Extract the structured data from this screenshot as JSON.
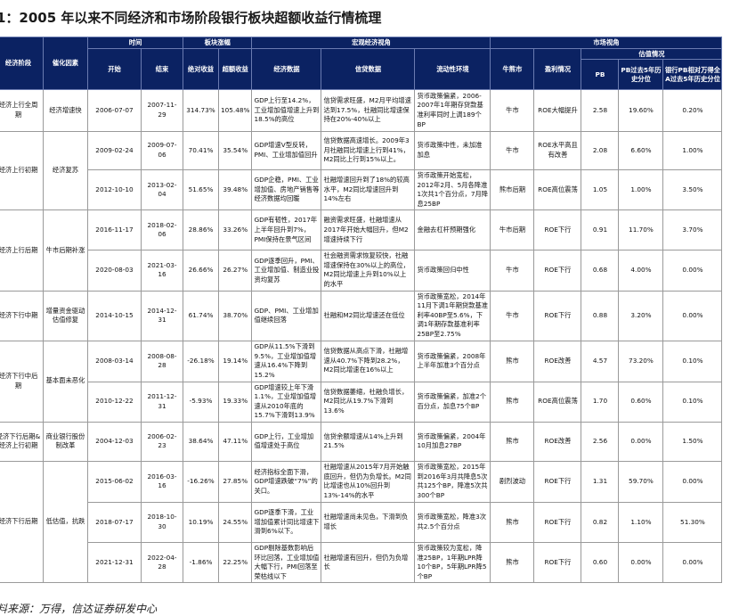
{
  "title": "1：2005 年以来不同经济和市场阶段银行板块超额收益行情梳理",
  "header": {
    "stage": "经济阶段",
    "catalyst": "催化因素",
    "time": "时间",
    "start": "开始",
    "end": "结束",
    "sector_change": "板块涨幅",
    "abs_return": "绝对收益",
    "excess_return": "超额收益",
    "macro": "宏观经济视角",
    "econ_data": "经济数据",
    "credit_data": "信贷数据",
    "liquidity": "流动性环境",
    "market": "市场视角",
    "bull_bear": "牛熊市",
    "profit": "盈利情况",
    "valuation": "估值情况",
    "pb": "PB",
    "pb_pct": "PB过去5年历史分位",
    "rel_pb_pct": "银行PB相对万得全A过去5年历史分位"
  },
  "groups": [
    {
      "stage": "经济上行全周期",
      "catalyst": "经济增速快",
      "rows": [
        {
          "start": "2006-07-07",
          "end": "2007-11-29",
          "abs": "314.73%",
          "excess": "105.48%",
          "econ": "GDP上行至14.2%，工业增加值增速上升到18.5%的高位",
          "credit": "信贷需求旺盛，M2月平均增速达到17.5%，社融同比增速保持在20%-40%以上",
          "liq": "货币政策偏紧，2006-2007年1年期存贷款基准利率同时上调189个BP",
          "bb": "牛市",
          "profit": "ROE大幅提升",
          "pb": "2.58",
          "pbp": "19.60%",
          "rpb": "0.20%"
        }
      ]
    },
    {
      "stage": "经济上行初期",
      "catalyst": "经济复苏",
      "rows": [
        {
          "start": "2009-02-24",
          "end": "2009-07-06",
          "abs": "70.41%",
          "excess": "35.54%",
          "econ": "GDP增速V型反转，PMI、工业增加值回升",
          "credit": "信贷数据高速增长。2009年3月社融同比增速上行到41%，M2同比上行到15%以上。",
          "liq": "货币政策中性，未加准加息",
          "bb": "牛市",
          "profit": "ROE水平高且有改善",
          "pb": "2.08",
          "pbp": "6.60%",
          "rpb": "1.00%"
        },
        {
          "start": "2012-10-10",
          "end": "2013-02-04",
          "abs": "51.65%",
          "excess": "39.48%",
          "econ": "GDP企稳，PMI、工业增加值、房地产销售等经济数据均回暖",
          "credit": "社融增速回升到了18%的较高水平，M2同比增速回升到14%左右",
          "liq": "货币政策开始宽松，2012年2月、5月各降准1次共1个百分点，7月降息25BP",
          "bb": "熊市后期",
          "profit": "ROE高位震荡",
          "pb": "1.05",
          "pbp": "1.00%",
          "rpb": "3.50%"
        }
      ]
    },
    {
      "stage": "经济上行后期",
      "catalyst": "牛市后期补涨",
      "rows": [
        {
          "start": "2016-11-17",
          "end": "2018-02-06",
          "abs": "28.86%",
          "excess": "33.26%",
          "econ": "GDP有韧性，2017年上半年回升到7%，PMI保持在景气区间",
          "credit": "融资需求旺盛，社融增速从2017年开始大幅回升，但M2增速持续下行",
          "liq": "金融去杠杆预期强化",
          "bb": "牛市后期",
          "profit": "ROE下行",
          "pb": "0.91",
          "pbp": "11.70%",
          "rpb": "3.70%"
        },
        {
          "start": "2020-08-03",
          "end": "2021-03-16",
          "abs": "26.66%",
          "excess": "26.27%",
          "econ": "GDP逐季回升，PMI、工业增加值、制造业投资均复苏",
          "credit": "社会融资需求恢复较快，社融增速保持在30%以上的高位，M2同比增速上升到10%以上的水平",
          "liq": "货币政策回归中性",
          "bb": "牛市",
          "profit": "ROE下行",
          "pb": "0.68",
          "pbp": "4.00%",
          "rpb": "0.00%"
        }
      ]
    },
    {
      "stage": "经济下行中期",
      "catalyst": "增量资金驱动估值修复",
      "rows": [
        {
          "start": "2014-10-15",
          "end": "2014-12-31",
          "abs": "61.74%",
          "excess": "38.70%",
          "econ": "GDP、PMI、工业增加值继续回落",
          "credit": "社融和M2同比增速还在低位",
          "liq": "货币政策宽松，2014年11月下调1年期贷款基准利率40BP至5.6%，下调1年期存款基准利率25BP至2.75%",
          "bb": "牛市",
          "profit": "ROE下行",
          "pb": "0.88",
          "pbp": "3.20%",
          "rpb": "0.00%"
        }
      ]
    },
    {
      "stage": "经济下行中后期",
      "catalyst": "基本面未恶化",
      "rows": [
        {
          "start": "2008-03-14",
          "end": "2008-08-28",
          "abs": "-26.18%",
          "excess": "19.14%",
          "econ": "GDP从11.5%下滑到9.5%，工业增加值增速从16.4%下降到15.2%",
          "credit": "信贷数据从高点下滑，社融增速从40.7%下降到28.2%，M2同比增速在16%以上",
          "liq": "货币政策偏紧，2008年上半年加准3个百分点",
          "bb": "熊市",
          "profit": "ROE改善",
          "pb": "4.57",
          "pbp": "73.20%",
          "rpb": "0.10%"
        },
        {
          "start": "2010-12-22",
          "end": "2011-12-31",
          "abs": "-5.93%",
          "excess": "19.33%",
          "econ": "GDP增速较上年下滑1.1%，工业增加值增速从2010年底的15.7%下滑到13.9%",
          "credit": "信贷数据萎缩，社融负增长，M2同比从19.7%下滑到13.6%",
          "liq": "货币政策偏紧，加准2个百分点，加息75个BP",
          "bb": "熊市",
          "profit": "ROE高位震荡",
          "pb": "1.70",
          "pbp": "0.60%",
          "rpb": "0.10%"
        }
      ]
    },
    {
      "stage": "经济下行后期&经济上行初期",
      "catalyst": "商业银行股份制改革",
      "rows": [
        {
          "start": "2004-12-03",
          "end": "2006-02-23",
          "abs": "38.64%",
          "excess": "47.11%",
          "econ": "GDP上行，工业增加值增速处于高位",
          "credit": "信贷余额增速从14%上升到21.5%",
          "liq": "货币政策偏紧，2004年10月加息27BP",
          "bb": "熊市",
          "profit": "ROE改善",
          "pb": "2.56",
          "pbp": "0.00%",
          "rpb": "1.50%"
        }
      ]
    },
    {
      "stage": "经济下行后期",
      "catalyst": "低估值，抗跌",
      "rows": [
        {
          "start": "2015-06-02",
          "end": "2016-03-16",
          "abs": "-16.26%",
          "excess": "27.85%",
          "econ": "经济指标全面下滑，GDP增速跌破“7%”的关口。",
          "credit": "社融增速从2015年7月开始触底回升，但仍为负增长。M2同比增速也从10%回升到13%-14%的水平",
          "liq": "货币政策宽松，2015年到2016年3月共降息5次共125个BP，降准5次共300个BP",
          "bb": "剧烈波动",
          "profit": "ROE下行",
          "pb": "1.31",
          "pbp": "59.70%",
          "rpb": "0.00%"
        },
        {
          "start": "2018-07-17",
          "end": "2018-10-30",
          "abs": "10.19%",
          "excess": "24.55%",
          "econ": "GDP逐季下滑，工业增加值累计同比增速下滑到6%以下。",
          "credit": "社融增速尚未见色，下滑到负增长",
          "liq": "货币政策宽松，降准3次共2.5个百分点",
          "bb": "熊市",
          "profit": "ROE下行",
          "pb": "0.82",
          "pbp": "1.10%",
          "rpb": "51.30%"
        },
        {
          "start": "2021-12-31",
          "end": "2022-04-28",
          "abs": "-1.86%",
          "excess": "22.25%",
          "econ": "GDP剔除基数影响后环比回落，工业增加值大幅下行，PMI回落至荣枯线以下",
          "credit": "社融增速有回升，但仍为负增长",
          "liq": "货币政策较为宽松，降准25BP，1年期LPR降10个BP，5年期LPR降5个BP",
          "bb": "熊市",
          "profit": "ROE下行",
          "pb": "0.60",
          "pbp": "0.00%",
          "rpb": "0.00%"
        }
      ]
    }
  ],
  "source": "料来源：万得，信达证券研发中心",
  "colors": {
    "header_bg": "#0b2262",
    "header_text": "#ffffff",
    "grid": "#9a9a9a"
  }
}
